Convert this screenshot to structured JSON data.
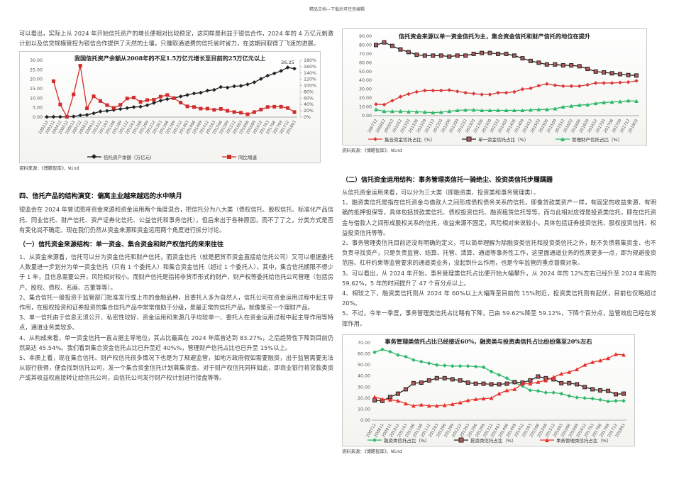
{
  "header_note": "精品文档---下载后可任意编辑",
  "left": {
    "intro": "可以看出，实际上从 2024 年开始信托资产的增长便相对比较稳定，这同样是利益于银信合作，2024 年的 4 万亿元刺激计划以及信贷规模管控为银信合作提供了天然的土壤，只赚取通道费的信托省时省力，在这期间取得了飞速的进展。",
    "chart1_source": "资料来源：《博瞻智库》、Wind",
    "section4_title": "四、信托产品的结构演变：偏离主业越来越远的水中映月",
    "section4_para": "银监会在 2024 年曾试图将资金来源和资金运用两个角度混合，把信托分为八大类（债权信托、股权信托、标准化产品信托、同业信托、财产信托、资产证券化信托、公益信托和事务信托），但后来出于各种原因，而不了了之，分类方式是否有变化尚不确定。现在我们仍然从资金来源和资金运用两个角度进行拆分讨论。",
    "sub1_title": "（一）信托资金来源结构：单一资金、集合资金和财产权信托的来来往往",
    "sub1_items": [
      "1、从资金来源看，信托可以分为资金信托和财产信托，而资金信托（就是把货币资金直接给信托公司）又可以根据委托人数量进一步划分为单一资金信托（只有 1 个委托人）和集合资金信托（超过 1 个委托人）。其中，集合信托期限不得少于 1 年，且信息需要公开，风险相对较小。而财产信托是指将非货币形式的财产、财产权等委托给信托公司管理（包括房产、股权、债权、名画、古董等等）。",
      "2、集合信托一般投资于监管部门批准发行或上市的金融品种，且委托人多为自然人，信托公司在资金运用过程中起主导作用，在股权投资和证券投资的集合信托产品中常常借助于分级，是最正常的信托产品，就像是买一个理财产品。",
      "3、单一信托由于信息无须公开、私密性较好、资金运用和来源几乎均较单一、委托人在资金运用过程中起主导作用等特点，通道业务类较多。",
      "4、从构成来看，单一资金信托一直占据主导地位，其占比最高在 2024 年底曾达到 83.27%，之后趋势性下降到目前仍然高达 45.54%。我们看到集合资金信托占比已升至近 40%%，管理财产信托占比也已升至 15%以上。",
      "5、本质上看，现在集合信托、财产权信托很多情况下也是为了规避监管，如地方政府假如需要融资，出于监管需要无法从银行获得，便会找到信托公司，发一个集合资金信托计划募集资金。对于财产权信托同样如此，即商业银行将贷款类资产或其收益权直接转让给信托公司，由信托公司发行财产权计划进行接盘等等。"
    ]
  },
  "right": {
    "chart2_source": "资料来源：《博瞻智库》、Wind",
    "sub2_title": "（二）信托资金运用结构：事务管理类信托一骑绝尘、投资类信托步履蹒跚",
    "sub2_items": [
      "从信托资金运用来看，可以分为三大类（即融资类、投资类和事务管理类）。",
      "1、融资类信托是指在信托资金与借款人之间形成债权债务关系的信托，即像贷款类资产一样，有固定的收益来源、有明确的抵押担保等，具体包括贷款类信托、债权投资信托、融资租赁信托等等。而与此相对应得是投资类信托，即在信托资金与借款人之间形成股权关系的信托，收益来源不固定，风险相对来说较小，具体包括证券投资信托、股权投资信托、权益投资信托等等。",
      "2、事务管理类信托目前还没有明确的定义，可以简单理解为除融资类信托和投资类信托之外，既不负债募集资金、也不负责寻找资产，只是负责监管、结算、托管、清算、通道等事务性工作，这里面通道业务的性质更多一点，即为规避投资范围、杠杆约束等监管要求的通道类业务，没起到什么作用，也是今年监管的重点督察对象。",
      "3、可以看出，从 2024 年开始，事务管理类信托占比便开始大幅攀升，从 2024 年的 12%左右已经升至 2024 年底的 59.62%，5 年的时间提升了 47 个百分点以上。",
      "4、相较之下，融资类信托则从 2024 年 60%以上大幅降至目前的 15%附近，投资类信托则有起伏，目前也仅略超过 20%。",
      "5、不过，今年一季度，事务管理类信托占比略有下降，已由 59.62%降至 59.12%，下降个百分点，监管效应已经在发挥作用。"
    ],
    "chart3_source": "资料来源：《博瞻智库》、Wind"
  },
  "chart_data": [
    {
      "type": "line",
      "title": "我国信托资产余额从2008年的不足1.5万亿元增长至目前的25万亿元以上",
      "x": [
        "200212",
        "200312",
        "200412",
        "200512",
        "200612",
        "200712",
        "200812",
        "200912",
        "201012",
        "201103",
        "201106",
        "201109",
        "201112",
        "201203",
        "201206",
        "201209",
        "201212",
        "201303",
        "201306",
        "201309",
        "201312",
        "201403",
        "201406",
        "201409",
        "201412",
        "201503",
        "201506",
        "201509",
        "201512",
        "201603",
        "201606",
        "201609",
        "201612",
        "201703",
        "201706",
        "201709",
        "201712",
        "201803"
      ],
      "series": [
        {
          "name": "信托资产余额（万亿元）",
          "axis": "left",
          "color": "#222222",
          "marker": "diamond",
          "values": [
            0.1,
            0.15,
            0.15,
            0.2,
            0.35,
            0.95,
            1.2,
            2.0,
            3.0,
            3.3,
            3.8,
            4.3,
            4.8,
            5.3,
            5.5,
            6.3,
            7.5,
            8.7,
            9.5,
            10.1,
            10.9,
            11.7,
            12.5,
            12.9,
            14.0,
            14.4,
            15.9,
            15.6,
            16.3,
            16.5,
            17.3,
            18.4,
            20.2,
            21.9,
            23.1,
            24.4,
            26.25,
            25.6
          ]
        },
        {
          "name": "同比增速",
          "axis": "right",
          "color": "#d12b2b",
          "marker": "square",
          "values": [
            null,
            114,
            40,
            1,
            72,
            163,
            28,
            66,
            51,
            38,
            29,
            39,
            59,
            62,
            48,
            54,
            55,
            65,
            70,
            60,
            46,
            34,
            32,
            27,
            27,
            23,
            26,
            20,
            16,
            14,
            9,
            16,
            24,
            32,
            33,
            33,
            29,
            16
          ]
        }
      ],
      "ylim_left": [
        0,
        30
      ],
      "yticks_left": [
        "0.00",
        "5.00",
        "10.00",
        "15.00",
        "20.00",
        "25.00",
        "30.00"
      ],
      "ylim_right": [
        0,
        180
      ],
      "yticks_right": [
        "0%",
        "20%",
        "40%",
        "60%",
        "80%",
        "100%",
        "120%",
        "140%",
        "160%",
        "180%"
      ],
      "annotations": [
        "26.25"
      ],
      "legend_position": "bottom"
    },
    {
      "type": "line",
      "title": "信托资金来源以单一资金信托为主，集合资金信托和财产信托的地位在提升",
      "x": [
        "200712",
        "200812",
        "200912",
        "201012",
        "201103",
        "201106",
        "201109",
        "201112",
        "201203",
        "201206",
        "201209",
        "201212",
        "201303",
        "201306",
        "201309",
        "201312",
        "201403",
        "201406",
        "201409",
        "201412",
        "201503",
        "201506",
        "201509",
        "201512",
        "201603",
        "201606",
        "201609",
        "201612",
        "201703",
        "201706",
        "201709",
        "201712",
        "201803"
      ],
      "series": [
        {
          "name": "集合资金信托占比（%）",
          "color": "#d93a3a",
          "marker": "diamond",
          "values": [
            13,
            12.5,
            17,
            21.5,
            24.5,
            27,
            28.5,
            28.5,
            28.5,
            29,
            27.5,
            26,
            25,
            24,
            24,
            26,
            26,
            27,
            30,
            31,
            34,
            36,
            34.5,
            33.5,
            33.5,
            33.5,
            35,
            37,
            37,
            37,
            37.5,
            38,
            39.5
          ]
        },
        {
          "name": "单一资金信托占比（%）",
          "color": "#222222",
          "marker": "square",
          "values": [
            80,
            83,
            79,
            75,
            72,
            69,
            68,
            68,
            68,
            67,
            68,
            68,
            70,
            71,
            71,
            70,
            70,
            68,
            65,
            62,
            60,
            58,
            58,
            57,
            57,
            56,
            53,
            50,
            49,
            48,
            47,
            46,
            45.5
          ]
        },
        {
          "name": "管理财产信托占比（%）",
          "color": "#2eb86a",
          "marker": "triangle",
          "values": [
            7,
            5,
            5,
            5,
            4.5,
            4.5,
            4,
            3.5,
            4,
            5,
            6,
            6.5,
            6.5,
            6,
            6,
            6,
            6,
            6,
            6,
            6.5,
            7,
            7,
            8,
            10,
            11,
            12,
            12.5,
            14,
            15,
            15.5,
            16,
            17,
            16.5
          ]
        }
      ],
      "ylim": [
        0,
        90
      ],
      "yticks": [
        "0.00",
        "10.00",
        "20.00",
        "30.00",
        "40.00",
        "50.00",
        "60.00",
        "70.00",
        "80.00",
        "90.00"
      ],
      "legend_position": "bottom"
    },
    {
      "type": "line",
      "title": "事务管理类信托占比已经接近60%，融资类与投资类信托占比纷纷落至20%左右",
      "x": [
        "200712",
        "200812",
        "200912",
        "201012",
        "201103",
        "201106",
        "201109",
        "201112",
        "201203",
        "201206",
        "201209",
        "201212",
        "201303",
        "201306",
        "201309",
        "201312",
        "201403",
        "201406",
        "201409",
        "201412",
        "201503",
        "201506",
        "201509",
        "201512",
        "201603",
        "201606",
        "201609",
        "201612",
        "201703",
        "201706",
        "201709",
        "201712",
        "201803"
      ],
      "series": [
        {
          "name": "融资类信托占比（%）",
          "color": "#2eb86a",
          "marker": "diamond",
          "values": [
            61.5,
            64,
            62,
            59,
            57.5,
            54.5,
            53,
            51.5,
            50,
            49.5,
            49,
            49,
            49,
            48.5,
            48,
            44,
            41,
            38,
            34,
            31,
            27,
            26.5,
            25,
            25,
            24,
            22,
            20.5,
            20,
            19.5,
            18.5,
            17,
            17.5,
            17.5
          ]
        },
        {
          "name": "投资类信托占比（%）",
          "color": "#222222",
          "marker": "square",
          "values": [
            18,
            17.5,
            21,
            24,
            28,
            33.5,
            34,
            36,
            38,
            38,
            37,
            36,
            34,
            33,
            33,
            32.5,
            32.5,
            33,
            34.5,
            34,
            36,
            39.5,
            38,
            37,
            33.5,
            33.5,
            32.5,
            30,
            28,
            27,
            26.5,
            23.5,
            24
          ]
        },
        {
          "name": "事务管理类信托占比（%）",
          "color": "#e8312b",
          "marker": "triangle",
          "values": [
            21,
            19,
            18.5,
            17.5,
            15,
            13,
            14,
            13,
            13,
            13.5,
            14.5,
            16,
            18,
            19,
            19.5,
            20,
            24,
            27,
            28,
            33,
            33,
            34.5,
            36,
            39,
            42,
            43.5,
            46,
            50,
            52.5,
            54,
            56,
            59.62,
            59.12
          ]
        }
      ],
      "ylim": [
        0,
        70
      ],
      "yticks": [
        "0.00",
        "10.00",
        "20.00",
        "30.00",
        "40.00",
        "50.00",
        "60.00",
        "70.00"
      ],
      "legend_position": "bottom"
    }
  ]
}
